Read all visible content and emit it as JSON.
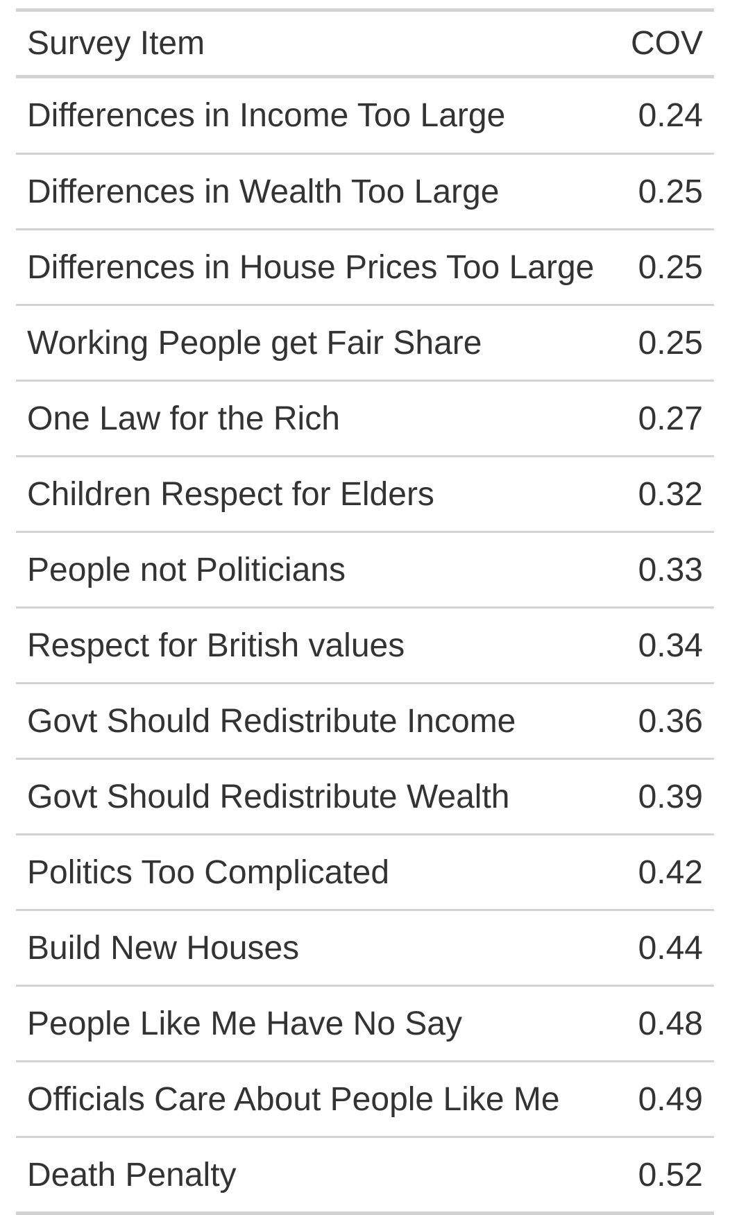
{
  "table": {
    "columns": [
      "Survey Item",
      "COV"
    ],
    "rows": [
      {
        "item": "Differences in Income Too Large",
        "cov": "0.24"
      },
      {
        "item": "Differences in Wealth Too Large",
        "cov": "0.25"
      },
      {
        "item": "Differences in House Prices Too Large",
        "cov": "0.25"
      },
      {
        "item": "Working People get Fair Share",
        "cov": "0.25"
      },
      {
        "item": "One Law for the Rich",
        "cov": "0.27"
      },
      {
        "item": "Children Respect for Elders",
        "cov": "0.32"
      },
      {
        "item": "People not Politicians",
        "cov": "0.33"
      },
      {
        "item": "Respect for British values",
        "cov": "0.34"
      },
      {
        "item": "Govt Should Redistribute Income",
        "cov": "0.36"
      },
      {
        "item": "Govt Should Redistribute Wealth",
        "cov": "0.39"
      },
      {
        "item": "Politics Too Complicated",
        "cov": "0.42"
      },
      {
        "item": "Build New Houses",
        "cov": "0.44"
      },
      {
        "item": "People Like Me Have No Say",
        "cov": "0.48"
      },
      {
        "item": "Officials Care About People Like Me",
        "cov": "0.49"
      },
      {
        "item": "Death Penalty",
        "cov": "0.52"
      }
    ]
  },
  "colors": {
    "text": "#333333",
    "rule": "#d3d3d3",
    "background": "#ffffff"
  }
}
